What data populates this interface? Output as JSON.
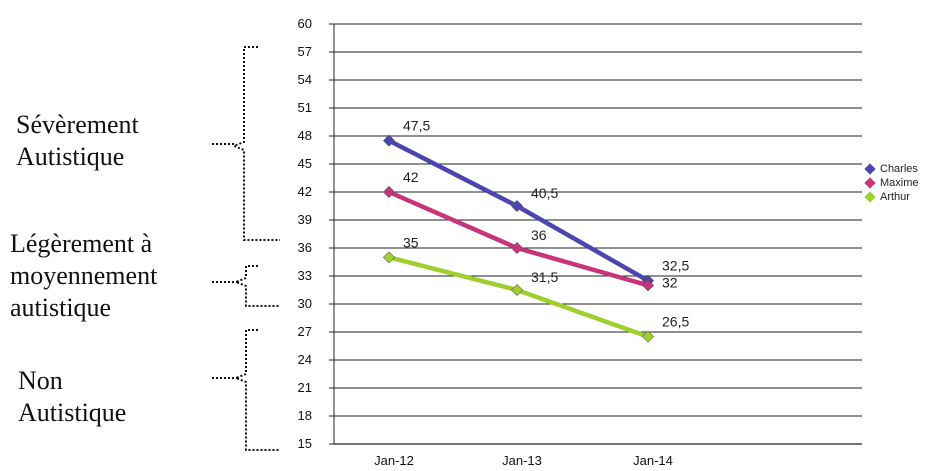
{
  "chart_data": {
    "type": "line",
    "title": "",
    "xlabel": "",
    "ylabel": "",
    "categories": [
      "Jan-12",
      "Jan-13",
      "Jan-14"
    ],
    "ylim": [
      15,
      60
    ],
    "yticks": [
      15,
      18,
      21,
      24,
      27,
      30,
      33,
      36,
      39,
      42,
      45,
      48,
      51,
      54,
      57,
      60
    ],
    "grid": true,
    "legend": "right",
    "series": [
      {
        "name": "Charles",
        "values": [
          47.5,
          40.5,
          32.5
        ],
        "labels": [
          "47,5",
          "40,5",
          "32,5"
        ],
        "color": "#4b45b0"
      },
      {
        "name": "Maxime",
        "values": [
          42,
          36,
          32
        ],
        "labels": [
          "42",
          "36",
          "32"
        ],
        "color": "#c8347a"
      },
      {
        "name": "Arthur",
        "values": [
          35,
          31.5,
          26.5
        ],
        "labels": [
          "35",
          "31,5",
          "26,5"
        ],
        "color": "#9fcf2e"
      }
    ]
  },
  "categories_text": {
    "severe": "Sévèrement\nAutistique",
    "mild": "Légèrement à\nmoyennement\nautistique",
    "non": "Non\nAutistique"
  }
}
